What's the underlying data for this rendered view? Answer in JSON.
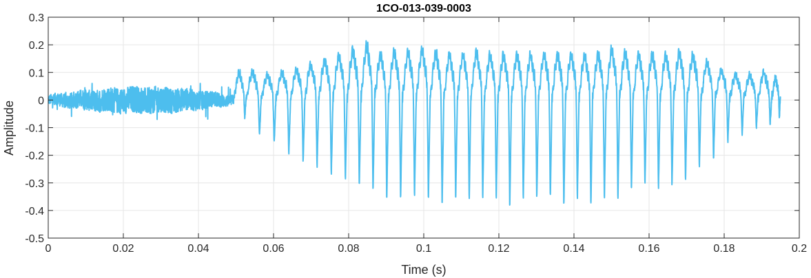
{
  "chart_data": {
    "type": "line",
    "title": "1CO-013-039-0003",
    "xlabel": "Time (s)",
    "ylabel": "Amplitude",
    "xlim": [
      0,
      0.2
    ],
    "ylim": [
      -0.5,
      0.3
    ],
    "grid": true,
    "x_ticks": [
      0,
      0.02,
      0.04,
      0.06,
      0.08,
      0.1,
      0.12,
      0.14,
      0.16,
      0.18,
      0.2
    ],
    "x_tick_labels": [
      "0",
      "0.02",
      "0.04",
      "0.06",
      "0.08",
      "0.1",
      "0.12",
      "0.14",
      "0.16",
      "0.18",
      "0.2"
    ],
    "y_ticks": [
      -0.5,
      -0.4,
      -0.3,
      -0.2,
      -0.1,
      0,
      0.1,
      0.2,
      0.3
    ],
    "y_tick_labels": [
      "-0.5",
      "-0.4",
      "-0.3",
      "-0.2",
      "-0.1",
      "0",
      "0.1",
      "0.2",
      "0.3"
    ],
    "colors": {
      "series": "#4DBEEE",
      "grid": "#e6e6e6",
      "axes": "#262626"
    },
    "series": [
      {
        "x_start": 0,
        "x_end": 0.195,
        "noise_segment": {
          "x": [
            0,
            0.0495
          ],
          "amplitude_range": [
            -0.07,
            0.06
          ]
        },
        "voiced_segment": {
          "x": [
            0.0495,
            0.195
          ]
        },
        "cycle_peaks": [
          {
            "t": 0.0508,
            "max": 0.11,
            "min": -0.07
          },
          {
            "t": 0.0548,
            "max": 0.11,
            "min": -0.13
          },
          {
            "t": 0.0588,
            "max": 0.1,
            "min": -0.16
          },
          {
            "t": 0.0626,
            "max": 0.11,
            "min": -0.2
          },
          {
            "t": 0.0666,
            "max": 0.12,
            "min": -0.23
          },
          {
            "t": 0.0702,
            "max": 0.14,
            "min": -0.25
          },
          {
            "t": 0.074,
            "max": 0.16,
            "min": -0.28
          },
          {
            "t": 0.0778,
            "max": 0.18,
            "min": -0.3
          },
          {
            "t": 0.0815,
            "max": 0.2,
            "min": -0.32
          },
          {
            "t": 0.0852,
            "max": 0.22,
            "min": -0.34
          },
          {
            "t": 0.0888,
            "max": 0.18,
            "min": -0.37
          },
          {
            "t": 0.0925,
            "max": 0.19,
            "min": -0.37
          },
          {
            "t": 0.0962,
            "max": 0.19,
            "min": -0.36
          },
          {
            "t": 0.0999,
            "max": 0.2,
            "min": -0.37
          },
          {
            "t": 0.1036,
            "max": 0.19,
            "min": -0.39
          },
          {
            "t": 0.1072,
            "max": 0.18,
            "min": -0.37
          },
          {
            "t": 0.1108,
            "max": 0.18,
            "min": -0.37
          },
          {
            "t": 0.1144,
            "max": 0.19,
            "min": -0.37
          },
          {
            "t": 0.118,
            "max": 0.18,
            "min": -0.37
          },
          {
            "t": 0.1216,
            "max": 0.18,
            "min": -0.4
          },
          {
            "t": 0.1252,
            "max": 0.18,
            "min": -0.37
          },
          {
            "t": 0.1288,
            "max": 0.18,
            "min": -0.37
          },
          {
            "t": 0.1324,
            "max": 0.18,
            "min": -0.37
          },
          {
            "t": 0.136,
            "max": 0.18,
            "min": -0.4
          },
          {
            "t": 0.1396,
            "max": 0.18,
            "min": -0.37
          },
          {
            "t": 0.1432,
            "max": 0.18,
            "min": -0.4
          },
          {
            "t": 0.1468,
            "max": 0.18,
            "min": -0.37
          },
          {
            "t": 0.1504,
            "max": 0.2,
            "min": -0.37
          },
          {
            "t": 0.154,
            "max": 0.19,
            "min": -0.34
          },
          {
            "t": 0.1576,
            "max": 0.18,
            "min": -0.32
          },
          {
            "t": 0.1612,
            "max": 0.18,
            "min": -0.33
          },
          {
            "t": 0.1648,
            "max": 0.18,
            "min": -0.32
          },
          {
            "t": 0.1684,
            "max": 0.19,
            "min": -0.3
          },
          {
            "t": 0.172,
            "max": 0.18,
            "min": -0.25
          },
          {
            "t": 0.1758,
            "max": 0.15,
            "min": -0.22
          },
          {
            "t": 0.1796,
            "max": 0.12,
            "min": -0.16
          },
          {
            "t": 0.1834,
            "max": 0.1,
            "min": -0.13
          },
          {
            "t": 0.1872,
            "max": 0.1,
            "min": -0.1
          },
          {
            "t": 0.191,
            "max": 0.11,
            "min": -0.09
          },
          {
            "t": 0.1945,
            "max": 0.09,
            "min": -0.07
          }
        ]
      }
    ]
  }
}
